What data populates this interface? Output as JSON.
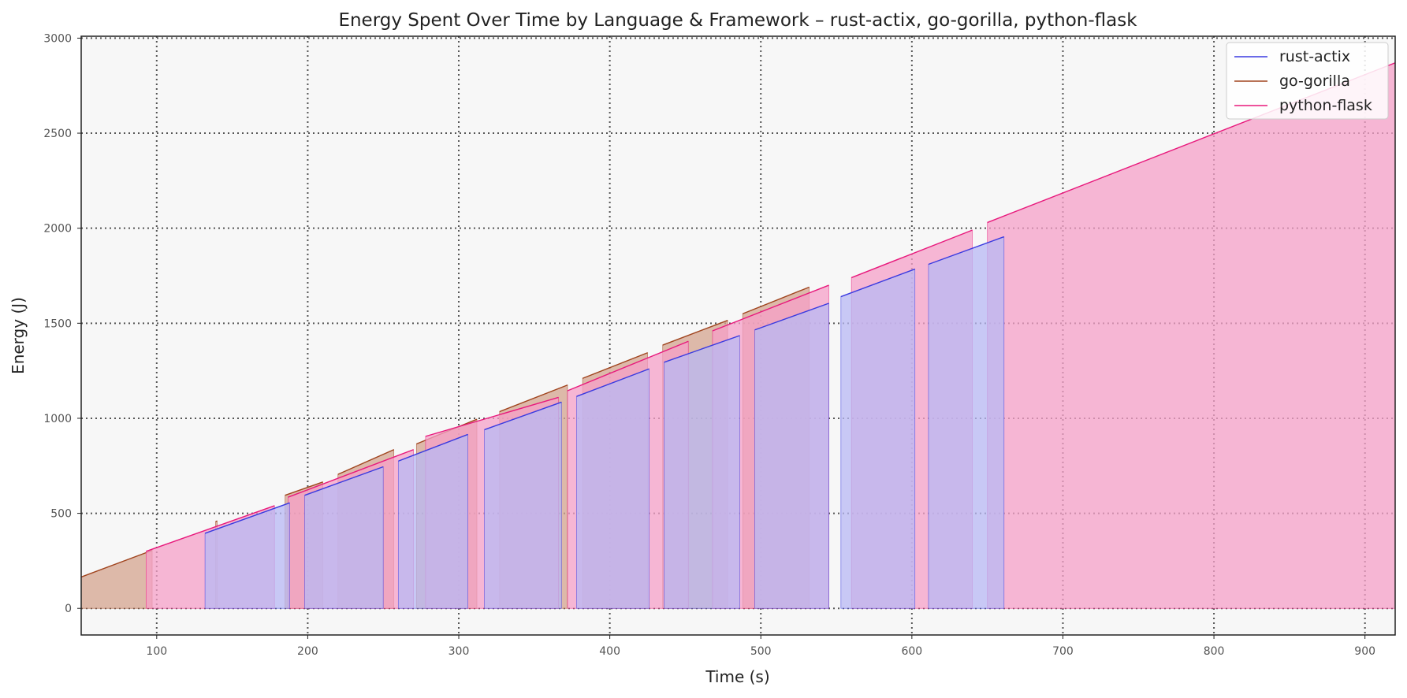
{
  "chart_data": {
    "type": "area",
    "title": "Energy Spent Over Time by Language & Framework – rust-actix, go-gorilla, python-flask",
    "xlabel": "Time (s)",
    "ylabel": "Energy (J)",
    "xlim": [
      50,
      920
    ],
    "ylim": [
      -140,
      3010
    ],
    "xticks": [
      100,
      200,
      300,
      400,
      500,
      600,
      700,
      800,
      900
    ],
    "yticks": [
      0,
      500,
      1000,
      1500,
      2000,
      2500,
      3000
    ],
    "grid": true,
    "legend_position": "top-right",
    "series": [
      {
        "name": "go-gorilla",
        "color": "#a0441e",
        "fill": "#d4a48f",
        "segments": [
          [
            [
              50,
              165
            ],
            [
              97,
              305
            ]
          ],
          [
            [
              140,
              460
            ]
          ],
          [
            [
              185,
              595
            ],
            [
              210,
              665
            ]
          ],
          [
            [
              220,
              705
            ],
            [
              257,
              835
            ]
          ],
          [
            [
              272,
              865
            ],
            [
              312,
              995
            ]
          ],
          [
            [
              327,
              1035
            ],
            [
              372,
              1175
            ]
          ],
          [
            [
              382,
              1210
            ],
            [
              425,
              1345
            ]
          ],
          [
            [
              435,
              1385
            ],
            [
              478,
              1515
            ]
          ],
          [
            [
              488,
              1550
            ],
            [
              532,
              1690
            ]
          ]
        ]
      },
      {
        "name": "python-flask",
        "color": "#e8197c",
        "fill": "#f5a0c8",
        "segments": [
          [
            [
              93,
              300
            ],
            [
              178,
              540
            ]
          ],
          [
            [
              187,
              585
            ],
            [
              270,
              835
            ]
          ],
          [
            [
              278,
              905
            ],
            [
              366,
              1110
            ]
          ],
          [
            [
              372,
              1145
            ],
            [
              452,
              1405
            ]
          ],
          [
            [
              468,
              1460
            ],
            [
              545,
              1700
            ]
          ],
          [
            [
              560,
              1740
            ],
            [
              640,
              1990
            ]
          ],
          [
            [
              650,
              2030
            ],
            [
              920,
              2870
            ]
          ]
        ]
      },
      {
        "name": "rust-actix",
        "color": "#3a3ae0",
        "fill": "#b8b8f4",
        "segments": [
          [
            [
              132,
              395
            ],
            [
              188,
              555
            ]
          ],
          [
            [
              198,
              595
            ],
            [
              250,
              745
            ]
          ],
          [
            [
              260,
              775
            ],
            [
              306,
              915
            ]
          ],
          [
            [
              317,
              940
            ],
            [
              368,
              1085
            ]
          ],
          [
            [
              378,
              1115
            ],
            [
              426,
              1260
            ]
          ],
          [
            [
              436,
              1295
            ],
            [
              486,
              1435
            ]
          ],
          [
            [
              496,
              1465
            ],
            [
              545,
              1605
            ]
          ],
          [
            [
              553,
              1640
            ],
            [
              602,
              1785
            ]
          ],
          [
            [
              611,
              1810
            ],
            [
              661,
              1955
            ]
          ]
        ]
      }
    ]
  }
}
